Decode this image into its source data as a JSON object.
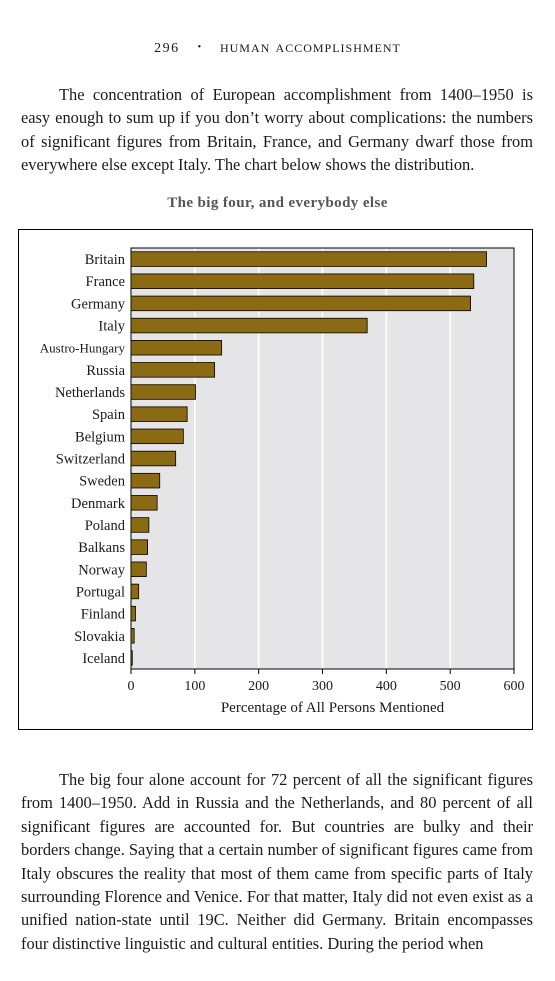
{
  "header": {
    "page_number": "296",
    "separator": "•",
    "book_title": "HUMAN ACCOMPLISHMENT"
  },
  "body": {
    "paragraph_1": "The concentration of European accomplishment from 1400–1950 is easy enough to sum up if you don’t worry about complications: the numbers of significant figures from Britain, France, and Germany dwarf those from everywhere else except Italy. The chart below shows the distribution.",
    "paragraph_2": "The big four alone account for 72 percent of all the significant figures from 1400–1950. Add in Russia and the Netherlands, and 80 percent of all significant figures are accounted for. But countries are bulky and their borders change. Saying that a certain number of significant figures came from Italy obscures the reality that most of them came from specific parts of Italy surrounding Florence and Venice. For that matter, Italy did not even exist as a unified nation-state until 19C. Neither did Germany. Britain encompasses four distinctive linguistic and cultural entities. During the period when"
  },
  "colors": {
    "bar_fill": "#8b6a14",
    "plot_background": "#e5e5e7",
    "title_gray": "#555555"
  },
  "chart_data": {
    "type": "bar",
    "orientation": "horizontal",
    "title": "The big four, and everybody else",
    "xlabel": "Percentage of All Persons Mentioned",
    "ylabel": "",
    "xlim": [
      0,
      600
    ],
    "xticks": [
      0,
      100,
      200,
      300,
      400,
      500,
      600
    ],
    "grid": "vertical lines",
    "categories": [
      "Britain",
      "France",
      "Germany",
      "Italy",
      "Austro-Hungary",
      "Russia",
      "Netherlands",
      "Spain",
      "Belgium",
      "Switzerland",
      "Sweden",
      "Denmark",
      "Poland",
      "Balkans",
      "Norway",
      "Portugal",
      "Finland",
      "Slovakia",
      "Iceland"
    ],
    "values": [
      557,
      537,
      532,
      370,
      142,
      131,
      101,
      88,
      82,
      70,
      45,
      41,
      28,
      26,
      24,
      12,
      7,
      5,
      2
    ]
  }
}
